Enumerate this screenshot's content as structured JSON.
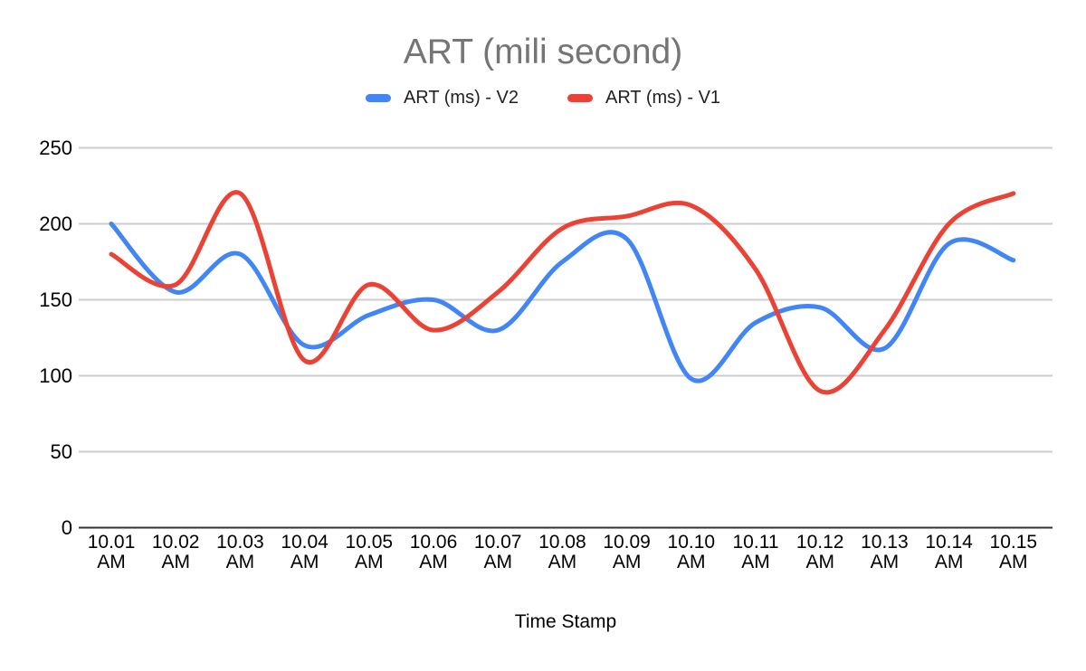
{
  "chart_data": {
    "type": "line",
    "title": "ART (mili second)",
    "xlabel": "Time Stamp",
    "ylabel": "",
    "ylim": [
      0,
      250
    ],
    "yticks": [
      0,
      50,
      100,
      150,
      200,
      250
    ],
    "grid": true,
    "smooth": true,
    "legend_position": "top",
    "categories": [
      "10.01 AM",
      "10.02 AM",
      "10.03 AM",
      "10.04 AM",
      "10.05 AM",
      "10.06 AM",
      "10.07 AM",
      "10.08 AM",
      "10.09 AM",
      "10.10 AM",
      "10.11 AM",
      "10.12 AM",
      "10.13 AM",
      "10.14 AM",
      "10.15 AM"
    ],
    "series": [
      {
        "name": "ART (ms) - V2",
        "color": "#4285F4",
        "values": [
          200,
          155,
          180,
          120,
          140,
          150,
          130,
          175,
          190,
          98,
          135,
          145,
          118,
          187,
          176
        ]
      },
      {
        "name": "ART (ms) - V1",
        "color": "#EA4335",
        "values": [
          180,
          160,
          220,
          110,
          160,
          130,
          155,
          197,
          205,
          212,
          170,
          90,
          130,
          200,
          220
        ]
      }
    ],
    "colors": {
      "title_text": "#757575",
      "legend_text": "#212121",
      "tick_text": "#000000",
      "gridline": "#cccccc",
      "baseline": "#333333",
      "background": "#ffffff"
    }
  }
}
